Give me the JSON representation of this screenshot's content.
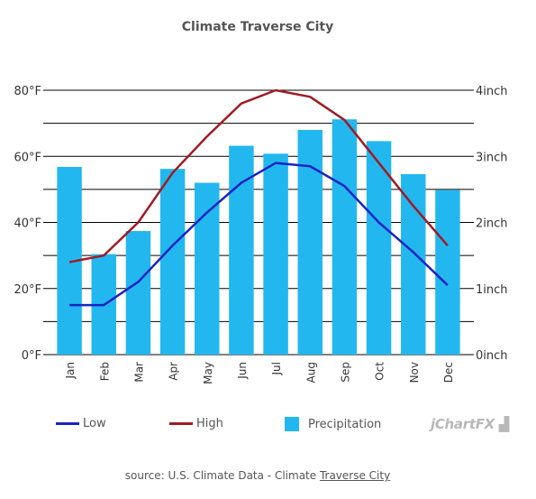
{
  "chart_data": {
    "type": "bar",
    "title": "Climate Traverse City",
    "categories": [
      "Jan",
      "Feb",
      "Mar",
      "Apr",
      "May",
      "Jun",
      "Jul",
      "Aug",
      "Sep",
      "Oct",
      "Nov",
      "Dec"
    ],
    "series": [
      {
        "name": "Low",
        "type": "line",
        "axis": "left",
        "color": "#1a23c4",
        "values": [
          15,
          15,
          22,
          33,
          43,
          52,
          58,
          57,
          51,
          40,
          31,
          21
        ]
      },
      {
        "name": "High",
        "type": "line",
        "axis": "left",
        "color": "#a01b23",
        "values": [
          28,
          30,
          40,
          55,
          66,
          76,
          80,
          78,
          71,
          58,
          45,
          33
        ]
      },
      {
        "name": "Precipitation",
        "type": "bar",
        "axis": "right",
        "color": "#22b8ef",
        "values": [
          2.84,
          1.52,
          1.87,
          2.81,
          2.6,
          3.16,
          3.04,
          3.4,
          3.56,
          3.23,
          2.73,
          2.49
        ]
      }
    ],
    "y_left": {
      "ylim": [
        0,
        80
      ],
      "ticks": [
        0,
        20,
        40,
        60,
        80
      ],
      "tick_labels": [
        "0°F",
        "20°F",
        "40°F",
        "60°F",
        "80°F"
      ]
    },
    "y_right": {
      "ylim": [
        0,
        4
      ],
      "ticks": [
        0,
        1,
        2,
        3,
        4
      ],
      "tick_labels": [
        "0inch",
        "1inch",
        "2inch",
        "3inch",
        "4inch"
      ]
    },
    "grid": true,
    "legend_position": "bottom"
  },
  "legend": {
    "low_label": "Low",
    "high_label": "High",
    "precip_label": "Precipitation"
  },
  "brand": "jChartFX",
  "source": {
    "prefix": "source: U.S. Climate Data - Climate ",
    "link_text": "Traverse City"
  }
}
